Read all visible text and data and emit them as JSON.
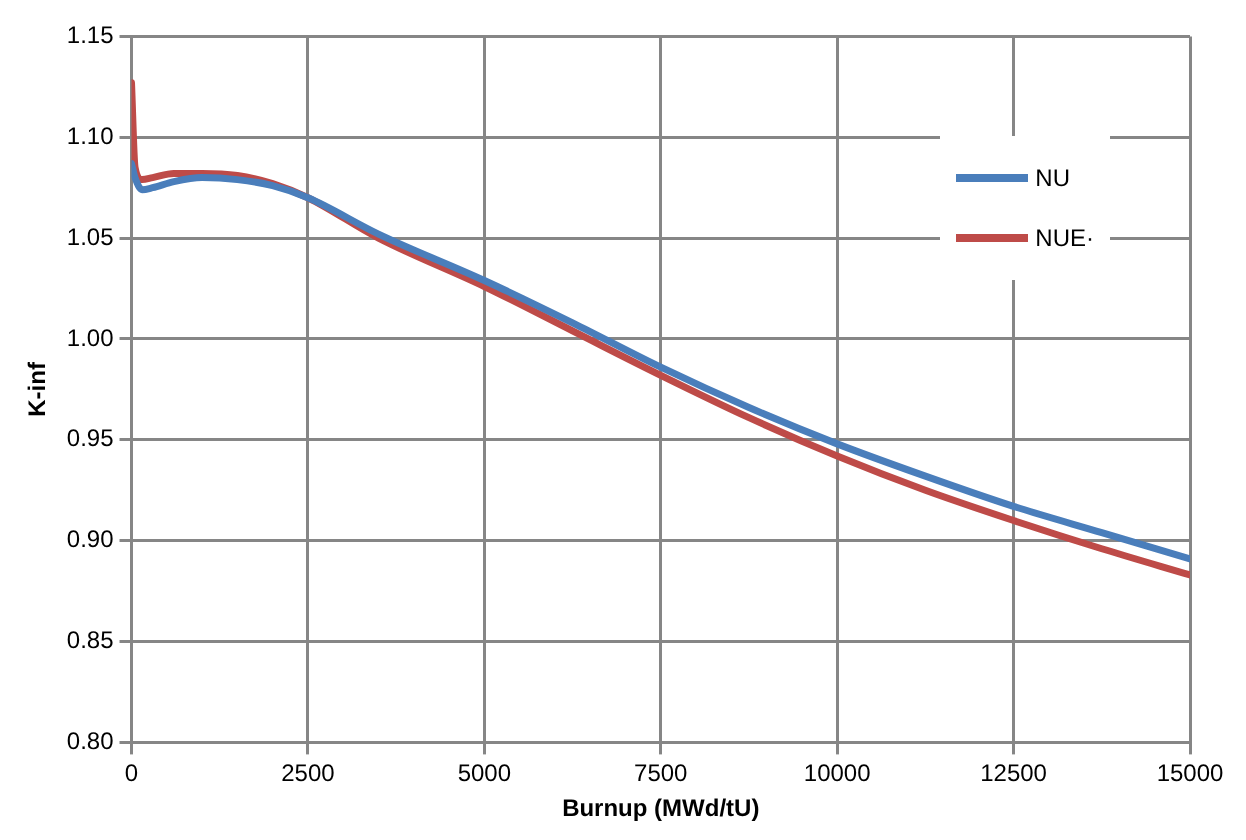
{
  "chart_data": {
    "type": "line",
    "xlabel": "Burnup (MWd/tU)",
    "ylabel": "K-inf",
    "x": [
      0,
      50,
      150,
      300,
      600,
      1000,
      1500,
      2000,
      2500,
      3500,
      5000,
      6250,
      7500,
      8750,
      10000,
      11250,
      12500,
      13750,
      15000
    ],
    "series": [
      {
        "name": "NU",
        "color": "#4a7ebb",
        "values": [
          1.087,
          1.08,
          1.074,
          1.075,
          1.078,
          1.08,
          1.079,
          1.076,
          1.07,
          1.052,
          1.029,
          1.008,
          0.986,
          0.966,
          0.948,
          0.932,
          0.917,
          0.904,
          0.891
        ]
      },
      {
        "name": "NUE·",
        "color": "#be4b48",
        "values": [
          1.127,
          1.085,
          1.079,
          1.08,
          1.082,
          1.082,
          1.081,
          1.077,
          1.07,
          1.05,
          1.026,
          1.004,
          0.982,
          0.961,
          0.942,
          0.925,
          0.91,
          0.896,
          0.883
        ]
      }
    ],
    "xlim": [
      0,
      15000
    ],
    "xticks": [
      0,
      2500,
      5000,
      7500,
      10000,
      12500,
      15000
    ],
    "ylim": [
      0.8,
      1.15
    ],
    "yticks": [
      {
        "value": 0.8,
        "label": "0.80"
      },
      {
        "value": 0.85,
        "label": "0.85"
      },
      {
        "value": 0.9,
        "label": "0.90"
      },
      {
        "value": 0.95,
        "label": "0.95"
      },
      {
        "value": 1.0,
        "label": "1.00"
      },
      {
        "value": 1.05,
        "label": "1.05"
      },
      {
        "value": 1.1,
        "label": "1.10"
      },
      {
        "value": 1.15,
        "label": "1.15"
      }
    ],
    "grid": true,
    "legend": "top right",
    "marker": "none",
    "line_style": "solid"
  }
}
